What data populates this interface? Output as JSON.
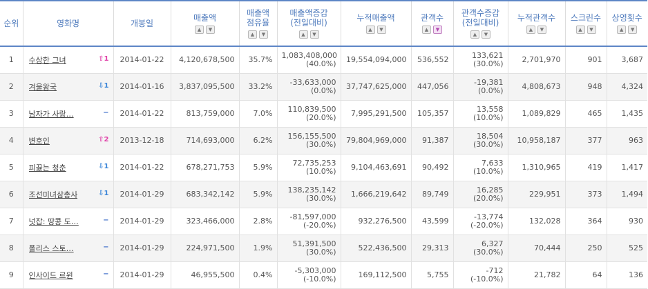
{
  "headers": [
    {
      "label": "순위",
      "sub": "",
      "sort": false
    },
    {
      "label": "영화명",
      "sub": "",
      "sort": false
    },
    {
      "label": "개봉일",
      "sub": "",
      "sort": false
    },
    {
      "label": "매출액",
      "sub": "",
      "sort": true
    },
    {
      "label": "매출액",
      "sub": "점유율",
      "sort": true
    },
    {
      "label": "매출액증감",
      "sub": "(전일대비)",
      "sort": true
    },
    {
      "label": "누적매출액",
      "sub": "",
      "sort": true
    },
    {
      "label": "관객수",
      "sub": "",
      "sort": true,
      "active": true
    },
    {
      "label": "관객수증감",
      "sub": "(전일대비)",
      "sort": true
    },
    {
      "label": "누적관객수",
      "sub": "",
      "sort": true
    },
    {
      "label": "스크린수",
      "sub": "",
      "sort": true
    },
    {
      "label": "상영횟수",
      "sub": "",
      "sort": true
    }
  ],
  "rows": [
    {
      "rank": "1",
      "title": "수상한 그녀",
      "change": "1",
      "dir": "up",
      "open": "2014-01-22",
      "sales": "4,120,678,500",
      "share": "35.7%",
      "sales_delta": "1,083,408,000",
      "sales_delta_pct": "(40.0%)",
      "cum_sales": "19,554,094,000",
      "aud": "536,552",
      "aud_delta": "133,621",
      "aud_delta_pct": "(30.0%)",
      "cum_aud": "2,701,970",
      "screens": "901",
      "shows": "3,687"
    },
    {
      "rank": "2",
      "title": "겨울왕국",
      "change": "1",
      "dir": "down",
      "open": "2014-01-16",
      "sales": "3,837,095,500",
      "share": "33.2%",
      "sales_delta": "-33,633,000",
      "sales_delta_pct": "(0.0%)",
      "cum_sales": "37,747,625,000",
      "aud": "447,056",
      "aud_delta": "-19,381",
      "aud_delta_pct": "(0.0%)",
      "cum_aud": "4,808,673",
      "screens": "948",
      "shows": "4,324"
    },
    {
      "rank": "3",
      "title": "남자가 사랑…",
      "change": "−",
      "dir": "flat",
      "open": "2014-01-22",
      "sales": "813,759,000",
      "share": "7.0%",
      "sales_delta": "110,839,500",
      "sales_delta_pct": "(20.0%)",
      "cum_sales": "7,995,291,500",
      "aud": "105,357",
      "aud_delta": "13,558",
      "aud_delta_pct": "(10.0%)",
      "cum_aud": "1,089,829",
      "screens": "465",
      "shows": "1,435"
    },
    {
      "rank": "4",
      "title": "변호인",
      "change": "2",
      "dir": "up",
      "open": "2013-12-18",
      "sales": "714,693,000",
      "share": "6.2%",
      "sales_delta": "156,155,500",
      "sales_delta_pct": "(30.0%)",
      "cum_sales": "79,804,969,000",
      "aud": "91,387",
      "aud_delta": "18,504",
      "aud_delta_pct": "(30.0%)",
      "cum_aud": "10,958,187",
      "screens": "377",
      "shows": "963"
    },
    {
      "rank": "5",
      "title": "피끓는 청춘",
      "change": "1",
      "dir": "down",
      "open": "2014-01-22",
      "sales": "678,271,753",
      "share": "5.9%",
      "sales_delta": "72,735,253",
      "sales_delta_pct": "(10.0%)",
      "cum_sales": "9,104,463,691",
      "aud": "90,492",
      "aud_delta": "7,633",
      "aud_delta_pct": "(10.0%)",
      "cum_aud": "1,310,965",
      "screens": "419",
      "shows": "1,417"
    },
    {
      "rank": "6",
      "title": "조선미녀삼총사",
      "change": "1",
      "dir": "down",
      "open": "2014-01-29",
      "sales": "683,342,142",
      "share": "5.9%",
      "sales_delta": "138,235,142",
      "sales_delta_pct": "(30.0%)",
      "cum_sales": "1,666,219,642",
      "aud": "89,749",
      "aud_delta": "16,285",
      "aud_delta_pct": "(20.0%)",
      "cum_aud": "229,951",
      "screens": "373",
      "shows": "1,494"
    },
    {
      "rank": "7",
      "title": "넛잡: 땅콩 도…",
      "change": "−",
      "dir": "flat",
      "open": "2014-01-29",
      "sales": "323,466,000",
      "share": "2.8%",
      "sales_delta": "-81,597,000",
      "sales_delta_pct": "(-20.0%)",
      "cum_sales": "932,276,500",
      "aud": "43,599",
      "aud_delta": "-13,774",
      "aud_delta_pct": "(-20.0%)",
      "cum_aud": "132,028",
      "screens": "364",
      "shows": "930"
    },
    {
      "rank": "8",
      "title": "폴리스 스토…",
      "change": "−",
      "dir": "flat",
      "open": "2014-01-29",
      "sales": "224,971,500",
      "share": "1.9%",
      "sales_delta": "51,391,500",
      "sales_delta_pct": "(30.0%)",
      "cum_sales": "522,436,500",
      "aud": "29,313",
      "aud_delta": "6,327",
      "aud_delta_pct": "(30.0%)",
      "cum_aud": "70,444",
      "screens": "250",
      "shows": "525"
    },
    {
      "rank": "9",
      "title": "인사이드 르윈",
      "change": "−",
      "dir": "flat",
      "open": "2014-01-29",
      "sales": "46,955,500",
      "share": "0.4%",
      "sales_delta": "-5,303,000",
      "sales_delta_pct": "(-10.0%)",
      "cum_sales": "169,112,500",
      "aud": "5,755",
      "aud_delta": "-712",
      "aud_delta_pct": "(-10.0%)",
      "cum_aud": "21,782",
      "screens": "64",
      "shows": "136"
    }
  ]
}
